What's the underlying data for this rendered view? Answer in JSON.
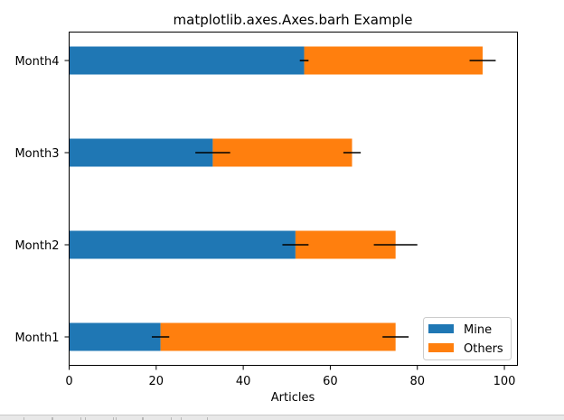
{
  "chart_data": {
    "type": "bar",
    "orientation": "horizontal",
    "stacked": true,
    "title": "matplotlib.axes.Axes.barh Example",
    "xlabel": "Articles",
    "ylabel": "",
    "categories": [
      "Month1",
      "Month2",
      "Month3",
      "Month4"
    ],
    "xlim": [
      0,
      103
    ],
    "xticks": [
      0,
      20,
      40,
      60,
      80,
      100
    ],
    "grid": false,
    "legend_position": "lower-right",
    "series": [
      {
        "name": "Mine",
        "color": "#1f77b4",
        "values": [
          21,
          52,
          33,
          54
        ],
        "errors": [
          2,
          3,
          4,
          1
        ]
      },
      {
        "name": "Others",
        "color": "#ff7f0e",
        "values": [
          54,
          23,
          32,
          41
        ],
        "errors": [
          3,
          5,
          2,
          3
        ]
      }
    ]
  },
  "toolbar": {
    "icons": [
      "home-icon",
      "back-icon",
      "forward-icon",
      "pan-icon",
      "zoom-icon",
      "configure-icon",
      "save-icon"
    ]
  }
}
